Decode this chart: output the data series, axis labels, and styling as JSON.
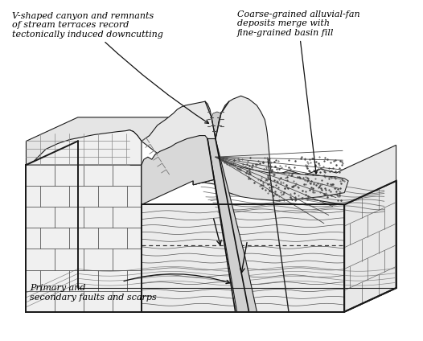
{
  "background_color": "#ffffff",
  "fig_width": 5.26,
  "fig_height": 4.24,
  "dpi": 100,
  "lc": "#1a1a1a",
  "lw_main": 0.8,
  "lw_thick": 1.2,
  "lw_border": 1.4,
  "ann1_text": "V-shaped canyon and remnants\nof stream terraces record\ntectonically induced downcutting",
  "ann2_text": "Coarse-grained alluvial-fan\ndeposits merge with\nfine-grained basin fill",
  "ann3_text": "Primary and\nsecondary faults and scarps",
  "fontsize": 8.0,
  "font_style": "italic"
}
